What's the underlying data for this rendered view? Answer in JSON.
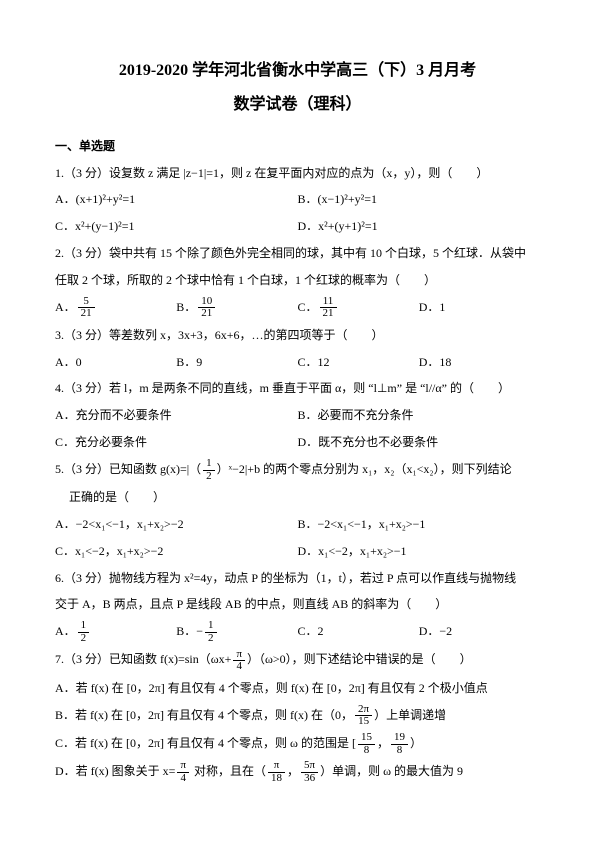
{
  "title_line1": "2019-2020 学年河北省衡水中学高三（下）3 月月考",
  "title_line2": "数学试卷（理科）",
  "section": "一、单选题",
  "q1": {
    "stem": "1.（3 分）设复数 z 满足 |z−1|=1，则 z 在复平面内对应的点为（x，y），则（　　）",
    "a": "A．(x+1)²+y²=1",
    "b": "B．(x−1)²+y²=1",
    "c": "C．x²+(y−1)²=1",
    "d": "D．x²+(y+1)²=1"
  },
  "q2": {
    "l1": "2.（3 分）袋中共有 15 个除了颜色外完全相同的球，其中有 10 个白球，5 个红球．从袋中",
    "l2": "任取 2 个球，所取的 2 个球中恰有 1 个白球，1 个红球的概率为（　　）",
    "a_num": "5",
    "a_den": "21",
    "b_num": "10",
    "b_den": "21",
    "c_num": "11",
    "c_den": "21",
    "d": "D．1"
  },
  "q3": {
    "stem": "3.（3 分）等差数列 x，3x+3，6x+6，…的第四项等于（　　）",
    "a": "A．0",
    "b": "B．9",
    "c": "C．12",
    "d": "D．18"
  },
  "q4": {
    "stem": "4.（3 分）若 l，m 是两条不同的直线，m 垂直于平面 α，则 “l⊥m” 是 “l//α” 的（　　）",
    "a": "A．充分而不必要条件",
    "b": "B．必要而不充分条件",
    "c": "C．充分必要条件",
    "d": "D．既不充分也不必要条件"
  },
  "q5": {
    "l1_pre": "5.（3 分）已知函数 g(x)=|（",
    "l1_num": "1",
    "l1_den": "2",
    "l1_post": "）ˣ−2|+b 的两个零点分别为 x₁，x₂（x₁<x₂），则下列结论",
    "l2": "正确的是（　　）",
    "a": "A．−2<x₁<−1，x₁+x₂>−2",
    "b": "B．−2<x₁<−1，x₁+x₂>−1",
    "c": "C．x₁<−2，x₁+x₂>−2",
    "d": "D．x₁<−2，x₁+x₂>−1"
  },
  "q6": {
    "l1": "6.（3 分）抛物线方程为 x²=4y，动点 P 的坐标为（1，t），若过 P 点可以作直线与抛物线",
    "l2": "交于 A，B 两点，且点 P 是线段 AB 的中点，则直线 AB 的斜率为（　　）",
    "a_num": "1",
    "a_den": "2",
    "b_pre": "B．−",
    "b_num": "1",
    "b_den": "2",
    "c": "C．2",
    "d": "D．−2"
  },
  "q7": {
    "stem_pre": "7.（3 分）已知函数 f(x)=sin（ωx+",
    "stem_num": "π",
    "stem_den": "4",
    "stem_post": "）（ω>0），则下述结论中错误的是（　　）",
    "a": "A．若 f(x) 在 [0，2π] 有且仅有 4 个零点，则 f(x) 在 [0，2π] 有且仅有 2 个极小值点",
    "b_pre": "B．若 f(x) 在 [0，2π] 有且仅有 4 个零点，则 f(x) 在（0，",
    "b_num": "2π",
    "b_den": "15",
    "b_post": "）上单调递增",
    "c_pre": "C．若 f(x) 在 [0，2π] 有且仅有 4 个零点，则 ω 的范围是 [",
    "c_n1": "15",
    "c_d1": "8",
    "c_mid": "，",
    "c_n2": "19",
    "c_d2": "8",
    "c_post": "）",
    "d_pre": "D．若 f(x) 图象关于 x=",
    "d_n1": "π",
    "d_d1": "4",
    "d_mid1": " 对称，且在（",
    "d_n2": "π",
    "d_d2": "18",
    "d_mid2": "，",
    "d_n3": "5π",
    "d_d3": "36",
    "d_post": "）单调，则 ω 的最大值为 9"
  }
}
